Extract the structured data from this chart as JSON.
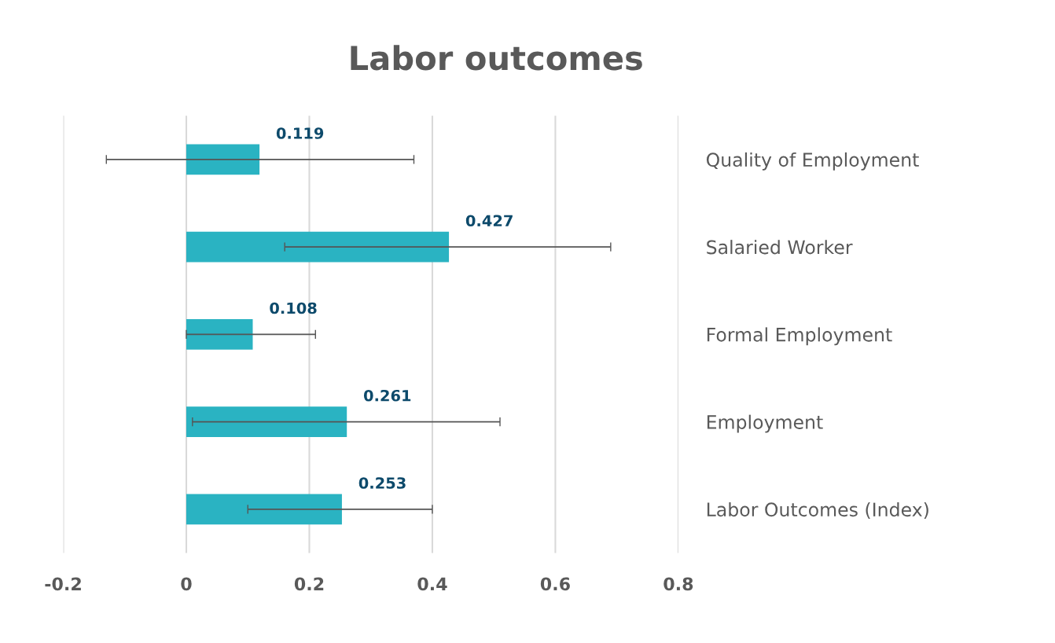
{
  "chart_data": {
    "type": "bar",
    "orientation": "horizontal",
    "title": "Labor outcomes",
    "categories": [
      "Quality of Employment",
      "Salaried Worker",
      "Formal Employment",
      "Employment",
      "Labor Outcomes (Index)"
    ],
    "values": [
      0.119,
      0.427,
      0.108,
      0.261,
      0.253
    ],
    "errors": [
      [
        -0.13,
        0.37
      ],
      [
        0.16,
        0.69
      ],
      [
        0.0,
        0.21
      ],
      [
        0.01,
        0.51
      ],
      [
        0.1,
        0.4
      ]
    ],
    "color": "#2ab3c2",
    "data_labels": true,
    "xlim": [
      -0.2,
      0.8
    ],
    "xticks": [
      -0.2,
      0,
      0.2,
      0.4,
      0.6,
      0.8
    ],
    "grid": "x"
  }
}
